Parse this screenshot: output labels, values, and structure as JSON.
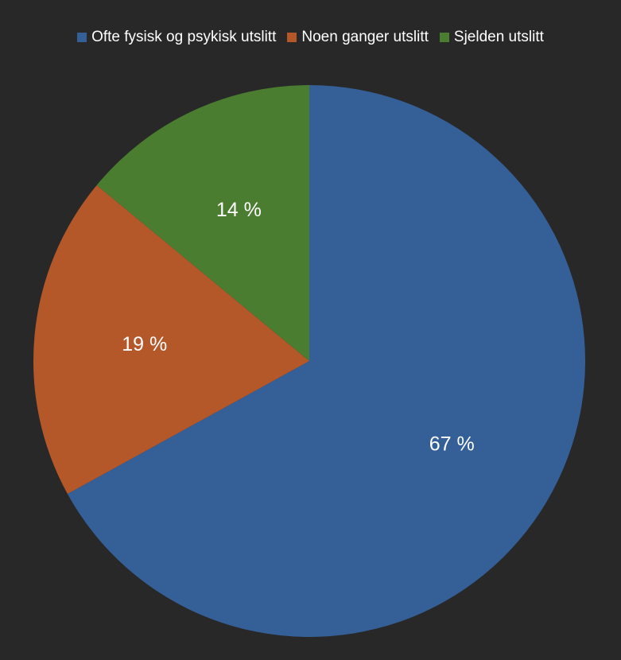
{
  "chart_data": {
    "type": "pie",
    "categories": [
      "Ofte fysisk og psykisk utslitt",
      "Noen ganger utslitt",
      "Sjelden utslitt"
    ],
    "values": [
      67,
      19,
      14
    ],
    "labels": [
      "67 %",
      "19 %",
      "14 %"
    ],
    "colors": [
      "#355f97",
      "#b4582a",
      "#4a7d30"
    ],
    "legend_position": "top"
  }
}
